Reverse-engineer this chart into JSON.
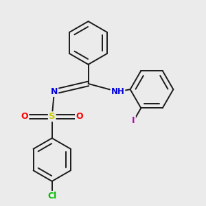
{
  "background_color": "#ebebeb",
  "bond_color": "#1a1a1a",
  "figsize": [
    3.0,
    3.0
  ],
  "dpi": 100,
  "atom_colors": {
    "N": "#0000dd",
    "S": "#cccc00",
    "O": "#ff0000",
    "Cl": "#00bb00",
    "I": "#bb00bb",
    "H": "#555555"
  }
}
